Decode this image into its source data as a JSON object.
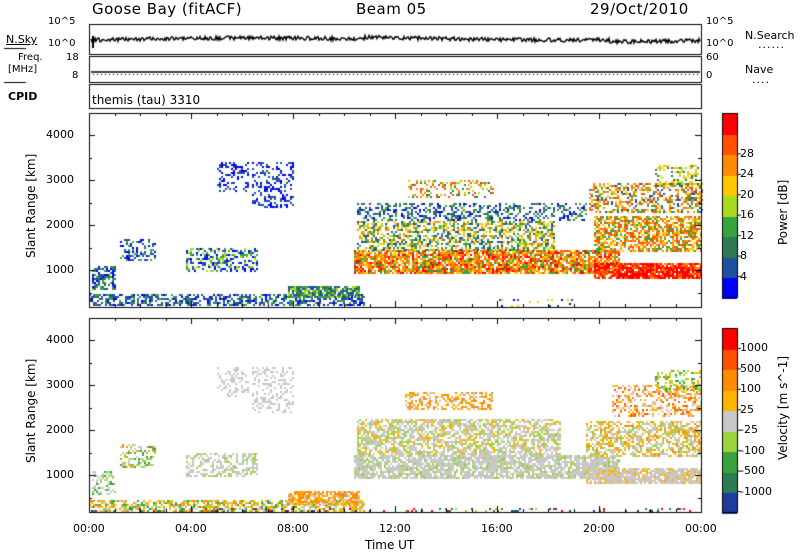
{
  "header": {
    "station": "Goose Bay (fitACF)",
    "beam": "Beam 05",
    "date": "29/Oct/2010"
  },
  "noise_panel": {
    "left_label": "N.Sky",
    "right_label": "N.Search",
    "tick_top": "10^5",
    "tick_bottom": "10^0",
    "legend_dots": "......"
  },
  "freq_panel": {
    "left_label_line1": "Freq.",
    "left_label_line2": "[MHz]",
    "left_ticks": [
      "18",
      "8"
    ],
    "right_label": "Nave",
    "right_ticks": [
      "60",
      "0"
    ],
    "legend_dots": "...."
  },
  "cpid": {
    "label": "CPID",
    "value": "themis (tau) 3310"
  },
  "chart_data": [
    {
      "type": "heatmap",
      "title": "",
      "xlabel": "Time UT",
      "ylabel": "Slant Range [km]",
      "ylim": [
        180,
        4500
      ],
      "yticks": [
        1000,
        2000,
        3000,
        4000
      ],
      "xticks": [
        "00:00",
        "04:00",
        "08:00",
        "12:00",
        "16:00",
        "20:00",
        "00:00"
      ],
      "xlim_hours": [
        0,
        24
      ],
      "colorbar": {
        "label": "Power [dB]",
        "ticks": [
          "4",
          "8",
          "12",
          "16",
          "20",
          "24",
          "28"
        ],
        "colors": [
          "#0000ff",
          "#1e50a0",
          "#2e7a52",
          "#3aa23c",
          "#aadb1f",
          "#ffc800",
          "#ff8c00",
          "#ff5000",
          "#ff0000"
        ]
      },
      "regions": [
        {
          "t": [
            0.0,
            10.8
          ],
          "r": [
            250,
            480
          ],
          "density": 0.55,
          "levels": [
            0,
            1,
            1,
            2,
            3
          ]
        },
        {
          "t": [
            7.8,
            10.6
          ],
          "r": [
            400,
            650
          ],
          "density": 0.8,
          "levels": [
            1,
            2,
            3,
            4
          ]
        },
        {
          "t": [
            0.1,
            1.0
          ],
          "r": [
            600,
            1100
          ],
          "density": 0.6,
          "levels": [
            0,
            1,
            2,
            3
          ]
        },
        {
          "t": [
            1.2,
            2.6
          ],
          "r": [
            1250,
            1700
          ],
          "density": 0.35,
          "levels": [
            0,
            1,
            3
          ]
        },
        {
          "t": [
            3.8,
            6.6
          ],
          "r": [
            1000,
            1500
          ],
          "density": 0.45,
          "levels": [
            0,
            1,
            3,
            4
          ]
        },
        {
          "t": [
            5.0,
            6.2
          ],
          "r": [
            2750,
            3400
          ],
          "density": 0.3,
          "levels": [
            0,
            1
          ]
        },
        {
          "t": [
            6.4,
            8.0
          ],
          "r": [
            2400,
            3400
          ],
          "density": 0.35,
          "levels": [
            0,
            1
          ]
        },
        {
          "t": [
            10.4,
            20.8
          ],
          "r": [
            950,
            1450
          ],
          "density": 0.8,
          "levels": [
            3,
            5,
            6,
            7,
            8,
            6
          ]
        },
        {
          "t": [
            10.5,
            18.2
          ],
          "r": [
            1450,
            2100
          ],
          "density": 0.55,
          "levels": [
            1,
            2,
            3,
            4,
            5,
            6
          ]
        },
        {
          "t": [
            10.5,
            19.5
          ],
          "r": [
            2100,
            2500
          ],
          "density": 0.4,
          "levels": [
            0,
            1,
            2,
            3
          ]
        },
        {
          "t": [
            12.5,
            15.8
          ],
          "r": [
            2600,
            3000
          ],
          "density": 0.3,
          "levels": [
            2,
            4,
            6,
            7
          ]
        },
        {
          "t": [
            19.8,
            24.0
          ],
          "r": [
            800,
            1150
          ],
          "density": 0.9,
          "levels": [
            7,
            8,
            8,
            8,
            6
          ]
        },
        {
          "t": [
            19.8,
            24.0
          ],
          "r": [
            1400,
            2200
          ],
          "density": 0.65,
          "levels": [
            3,
            5,
            6,
            7
          ]
        },
        {
          "t": [
            19.6,
            24.0
          ],
          "r": [
            2300,
            2950
          ],
          "density": 0.45,
          "levels": [
            1,
            3,
            5,
            6,
            7
          ]
        },
        {
          "t": [
            22.2,
            24.0
          ],
          "r": [
            2900,
            3350
          ],
          "density": 0.35,
          "levels": [
            2,
            4,
            5
          ]
        },
        {
          "t": [
            16.0,
            19.0
          ],
          "r": [
            180,
            350
          ],
          "density": 0.1,
          "levels": [
            0,
            1,
            5
          ]
        }
      ]
    },
    {
      "type": "heatmap",
      "title": "",
      "xlabel": "Time UT",
      "ylabel": "Slant Range [km]",
      "ylim": [
        180,
        4500
      ],
      "yticks": [
        1000,
        2000,
        3000,
        4000
      ],
      "xticks": [
        "00:00",
        "04:00",
        "08:00",
        "12:00",
        "16:00",
        "20:00",
        "00:00"
      ],
      "xlim_hours": [
        0,
        24
      ],
      "colorbar": {
        "label": "Velocity [m s^-1]",
        "ticks": [
          "1000",
          "500",
          "100",
          "25",
          "-25",
          "-100",
          "-500",
          "-1000"
        ],
        "colors": [
          "#1e3ca0",
          "#2e7a52",
          "#3aa23c",
          "#9bd43c",
          "#c8c8c8",
          "#ffb400",
          "#ff8c00",
          "#ff5000",
          "#ff0000"
        ]
      },
      "regions": [
        {
          "t": [
            0.0,
            10.8
          ],
          "r": [
            200,
            450
          ],
          "density": 0.6,
          "levels": [
            3,
            4,
            5,
            5,
            6,
            2
          ]
        },
        {
          "t": [
            7.8,
            10.6
          ],
          "r": [
            350,
            650
          ],
          "density": 0.75,
          "levels": [
            4,
            5,
            6,
            6
          ]
        },
        {
          "t": [
            0.1,
            1.0
          ],
          "r": [
            600,
            1100
          ],
          "density": 0.5,
          "levels": [
            4,
            4,
            3,
            2
          ]
        },
        {
          "t": [
            1.2,
            2.6
          ],
          "r": [
            1200,
            1700
          ],
          "density": 0.35,
          "levels": [
            2,
            3,
            4,
            6
          ]
        },
        {
          "t": [
            3.8,
            6.6
          ],
          "r": [
            1000,
            1500
          ],
          "density": 0.5,
          "levels": [
            4,
            4,
            4,
            3
          ]
        },
        {
          "t": [
            5.0,
            6.2
          ],
          "r": [
            2750,
            3400
          ],
          "density": 0.3,
          "levels": [
            4,
            4
          ]
        },
        {
          "t": [
            6.4,
            8.0
          ],
          "r": [
            2400,
            3400
          ],
          "density": 0.35,
          "levels": [
            4,
            4
          ]
        },
        {
          "t": [
            10.4,
            20.8
          ],
          "r": [
            950,
            1450
          ],
          "density": 0.8,
          "levels": [
            4,
            4,
            4,
            4,
            3
          ]
        },
        {
          "t": [
            10.5,
            18.5
          ],
          "r": [
            1450,
            2250
          ],
          "density": 0.65,
          "levels": [
            4,
            4,
            4,
            3,
            5
          ]
        },
        {
          "t": [
            12.4,
            15.8
          ],
          "r": [
            2450,
            2850
          ],
          "density": 0.45,
          "levels": [
            5,
            6,
            6,
            4
          ]
        },
        {
          "t": [
            19.5,
            24.0
          ],
          "r": [
            800,
            1150
          ],
          "density": 0.85,
          "levels": [
            4,
            4,
            4,
            5
          ]
        },
        {
          "t": [
            19.5,
            24.0
          ],
          "r": [
            1400,
            2200
          ],
          "density": 0.6,
          "levels": [
            4,
            4,
            5,
            6,
            3
          ]
        },
        {
          "t": [
            20.5,
            24.0
          ],
          "r": [
            2300,
            3000
          ],
          "density": 0.45,
          "levels": [
            5,
            6,
            7,
            4
          ]
        },
        {
          "t": [
            22.2,
            24.0
          ],
          "r": [
            2900,
            3350
          ],
          "density": 0.35,
          "levels": [
            3,
            2,
            5
          ]
        },
        {
          "t": [
            0.0,
            24.0
          ],
          "r": [
            180,
            260
          ],
          "density": 0.15,
          "levels": [
            1,
            3,
            8,
            0
          ]
        }
      ]
    }
  ]
}
